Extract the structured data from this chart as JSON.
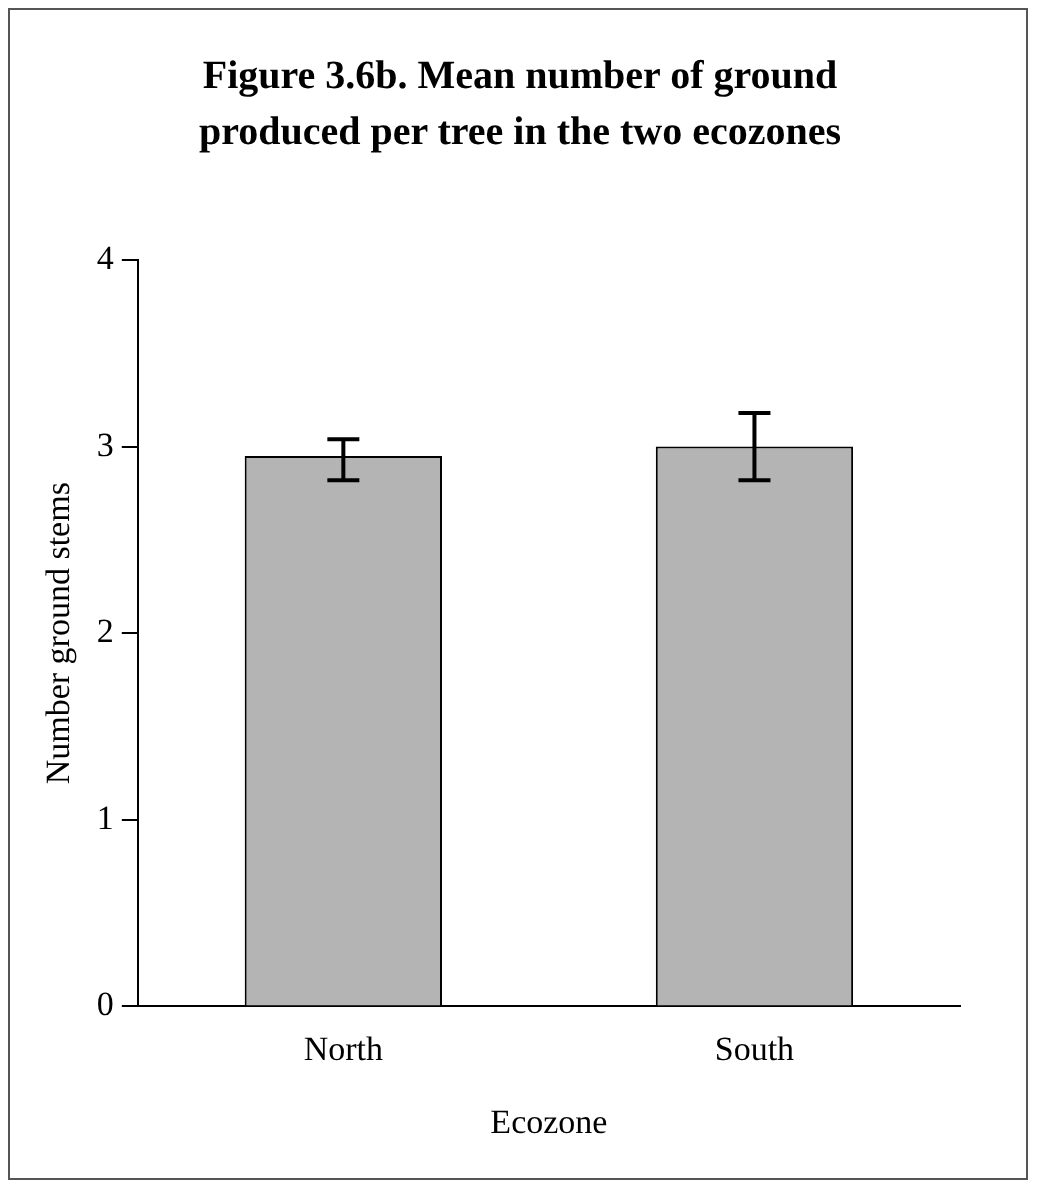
{
  "chart_data": {
    "type": "bar",
    "title": "Figure 3.6b. Mean number of ground produced per tree in the two ecozones",
    "xlabel": "Ecozone",
    "ylabel": "Number ground stems",
    "categories": [
      "North",
      "South"
    ],
    "values": [
      2.95,
      3.0
    ],
    "errors": [
      [
        2.82,
        3.04
      ],
      [
        2.82,
        3.18
      ]
    ],
    "color": "#b4b4b4",
    "ylim": [
      0,
      4
    ],
    "yticks": [
      0,
      1,
      2,
      3,
      4
    ],
    "grid": false,
    "legend": false
  }
}
